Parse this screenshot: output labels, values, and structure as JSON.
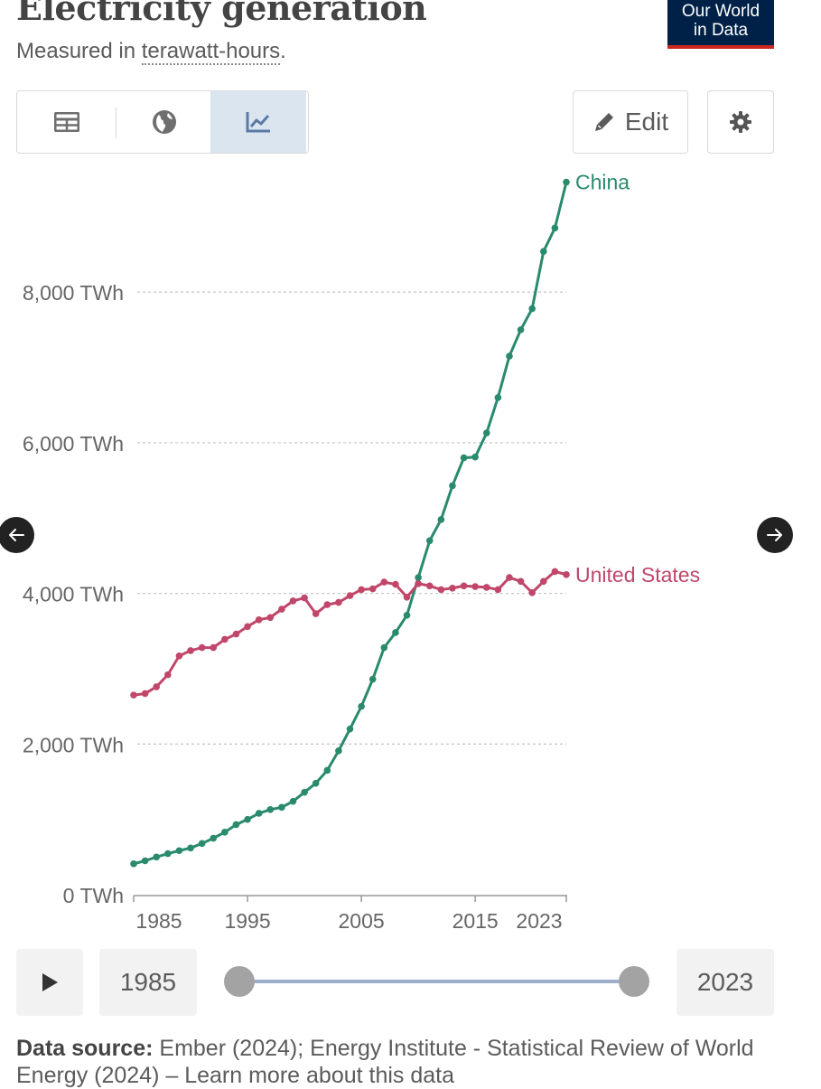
{
  "header": {
    "title": "Electricity generation",
    "subtitle_prefix": "Measured in ",
    "subtitle_unit": "terawatt-hours",
    "subtitle_suffix": "."
  },
  "logo": {
    "line1": "Our World",
    "line2": "in Data"
  },
  "tabs": [
    {
      "icon": "table-icon",
      "selected": false
    },
    {
      "icon": "globe-icon",
      "selected": false
    },
    {
      "icon": "line-chart-icon",
      "selected": true
    }
  ],
  "toolbar": {
    "edit_label": "Edit",
    "settings_icon": "gear-icon"
  },
  "timeline": {
    "start_year": "1985",
    "end_year": "2023"
  },
  "source": {
    "label": "Data source:",
    "text": "Ember (2024); Energy Institute - Statistical Review of World Energy (2024) – Learn more about this data"
  },
  "colors": {
    "china": "#2a8a6e",
    "united_states": "#c0476a",
    "grid": "#c8c8c8",
    "logo_bg": "#002147",
    "logo_accent": "#ce261e"
  },
  "chart_data": {
    "type": "line",
    "title": "Electricity generation",
    "subtitle": "Measured in terawatt-hours.",
    "xlabel": "",
    "ylabel": "",
    "xlim": [
      1985,
      2023
    ],
    "ylim": [
      0,
      9500
    ],
    "grid": true,
    "legend": "inline-right",
    "y_ticks": [
      {
        "value": 0,
        "label": "0 TWh"
      },
      {
        "value": 2000,
        "label": "2,000 TWh"
      },
      {
        "value": 4000,
        "label": "4,000 TWh"
      },
      {
        "value": 6000,
        "label": "6,000 TWh"
      },
      {
        "value": 8000,
        "label": "8,000 TWh"
      }
    ],
    "x_ticks": [
      {
        "value": 1985,
        "label": "1985"
      },
      {
        "value": 1995,
        "label": "1995"
      },
      {
        "value": 2005,
        "label": "2005"
      },
      {
        "value": 2015,
        "label": "2015"
      },
      {
        "value": 2023,
        "label": "2023"
      }
    ],
    "x": [
      1985,
      1986,
      1987,
      1988,
      1989,
      1990,
      1991,
      1992,
      1993,
      1994,
      1995,
      1996,
      1997,
      1998,
      1999,
      2000,
      2001,
      2002,
      2003,
      2004,
      2005,
      2006,
      2007,
      2008,
      2009,
      2010,
      2011,
      2012,
      2013,
      2014,
      2015,
      2016,
      2017,
      2018,
      2019,
      2020,
      2021,
      2022,
      2023
    ],
    "series": [
      {
        "name": "China",
        "color": "#2a8a6e",
        "values": [
          410,
          450,
          500,
          545,
          585,
          620,
          680,
          750,
          830,
          930,
          1000,
          1080,
          1130,
          1160,
          1240,
          1360,
          1480,
          1650,
          1910,
          2200,
          2500,
          2860,
          3280,
          3480,
          3710,
          4210,
          4700,
          4980,
          5430,
          5800,
          5810,
          6130,
          6600,
          7150,
          7500,
          7780,
          8540,
          8850,
          9460
        ]
      },
      {
        "name": "United States",
        "color": "#c0476a",
        "values": [
          2650,
          2670,
          2760,
          2920,
          3170,
          3240,
          3280,
          3280,
          3390,
          3460,
          3560,
          3650,
          3680,
          3790,
          3900,
          3940,
          3730,
          3850,
          3880,
          3970,
          4050,
          4060,
          4150,
          4120,
          3950,
          4130,
          4100,
          4050,
          4070,
          4100,
          4090,
          4080,
          4050,
          4210,
          4160,
          4010,
          4160,
          4290,
          4250
        ]
      }
    ]
  }
}
